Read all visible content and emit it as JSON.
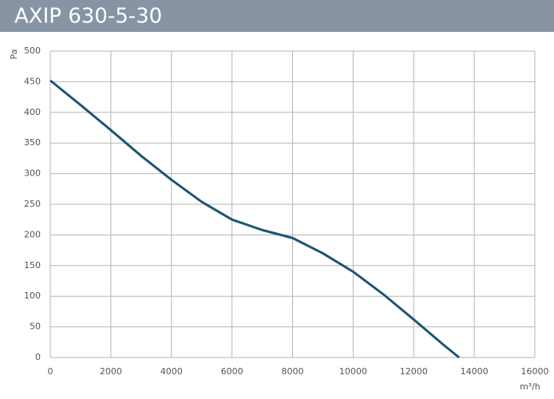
{
  "chart_data": {
    "type": "line",
    "title": "AXIP 630-5-30",
    "x_label": "m³/h",
    "y_label": "Pa",
    "series": [
      {
        "name": "AXIP 630-5-30",
        "color": "#1d5670",
        "x": [
          0,
          1000,
          2000,
          3000,
          4000,
          5000,
          6000,
          7000,
          8000,
          9000,
          10000,
          11000,
          12000,
          13000,
          13500
        ],
        "values": [
          452,
          412,
          371,
          329,
          290,
          254,
          225,
          208,
          195,
          170,
          140,
          103,
          62,
          20,
          0
        ]
      }
    ],
    "xlim": [
      0,
      16000
    ],
    "xticks": [
      0,
      2000,
      4000,
      6000,
      8000,
      10000,
      12000,
      14000,
      16000
    ],
    "ylim": [
      0,
      500
    ],
    "yticks": [
      0,
      50,
      100,
      150,
      200,
      250,
      300,
      350,
      400,
      450,
      500
    ],
    "grid": true
  }
}
